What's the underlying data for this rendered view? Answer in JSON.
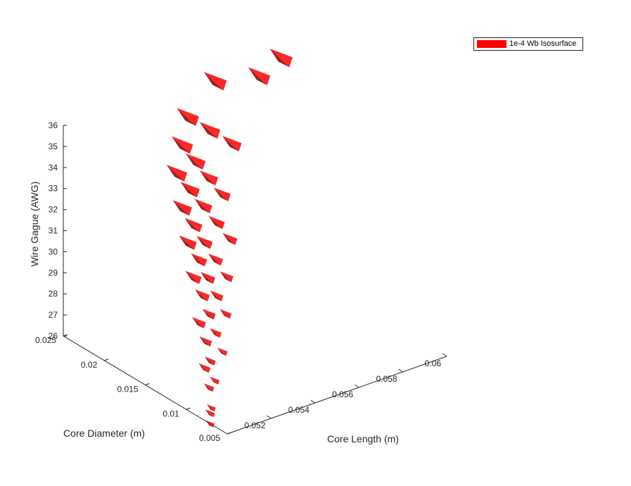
{
  "chart_data": {
    "type": "isosurface-3d",
    "series_color": "#ff0000",
    "legend": {
      "entries": [
        "1e-4 Wb Isosurface"
      ],
      "location": "top-right"
    },
    "axes": {
      "x": {
        "label": "Core Length (m)",
        "range": [
          0.05,
          0.06
        ],
        "ticks": [
          "0.052",
          "0.054",
          "0.056",
          "0.058",
          "0.06"
        ]
      },
      "y": {
        "label": "Core Diameter (m)",
        "range": [
          0.005,
          0.025
        ],
        "ticks": [
          "0.005",
          "0.01",
          "0.015",
          "0.02",
          "0.025"
        ]
      },
      "z": {
        "label": "Wire Gague (AWG)",
        "range": [
          26,
          36
        ],
        "ticks": [
          "26",
          "27",
          "28",
          "29",
          "30",
          "31",
          "32",
          "33",
          "34",
          "35",
          "36"
        ]
      }
    },
    "grid": false,
    "surface": [
      {
        "diameter": 0.007,
        "points": [
          [
            0.05,
            26.5
          ],
          [
            0.05,
            26.0
          ]
        ]
      },
      {
        "diameter": 0.009,
        "points": [
          [
            0.0505,
            28.0
          ],
          [
            0.0507,
            27.0
          ],
          [
            0.0508,
            26.0
          ]
        ]
      },
      {
        "diameter": 0.011,
        "points": [
          [
            0.051,
            29.5
          ],
          [
            0.0513,
            28.5
          ],
          [
            0.0515,
            27.5
          ],
          [
            0.0517,
            26.5
          ]
        ]
      },
      {
        "diameter": 0.013,
        "points": [
          [
            0.0515,
            31.0
          ],
          [
            0.0519,
            30.0
          ],
          [
            0.0522,
            29.0
          ],
          [
            0.0525,
            28.0
          ],
          [
            0.0528,
            27.0
          ]
        ]
      },
      {
        "diameter": 0.015,
        "points": [
          [
            0.052,
            32.0
          ],
          [
            0.0525,
            31.0
          ],
          [
            0.0529,
            30.0
          ],
          [
            0.0533,
            29.0
          ],
          [
            0.0537,
            28.0
          ]
        ]
      },
      {
        "diameter": 0.017,
        "points": [
          [
            0.0525,
            33.0
          ],
          [
            0.053,
            32.0
          ],
          [
            0.0535,
            31.0
          ],
          [
            0.054,
            30.0
          ],
          [
            0.0545,
            29.0
          ]
        ]
      },
      {
        "diameter": 0.019,
        "points": [
          [
            0.053,
            34.0
          ],
          [
            0.0536,
            33.0
          ],
          [
            0.0542,
            32.0
          ],
          [
            0.0548,
            31.0
          ],
          [
            0.0554,
            30.0
          ]
        ]
      },
      {
        "diameter": 0.021,
        "points": [
          [
            0.054,
            34.5
          ],
          [
            0.0546,
            33.5
          ],
          [
            0.0552,
            32.5
          ],
          [
            0.0558,
            31.5
          ]
        ]
      },
      {
        "diameter": 0.023,
        "points": [
          [
            0.055,
            35.0
          ],
          [
            0.056,
            34.0
          ],
          [
            0.057,
            33.0
          ]
        ]
      },
      {
        "diameter": 0.025,
        "points": [
          [
            0.057,
            35.5
          ],
          [
            0.059,
            35.0
          ],
          [
            0.06,
            35.5
          ]
        ]
      }
    ]
  }
}
